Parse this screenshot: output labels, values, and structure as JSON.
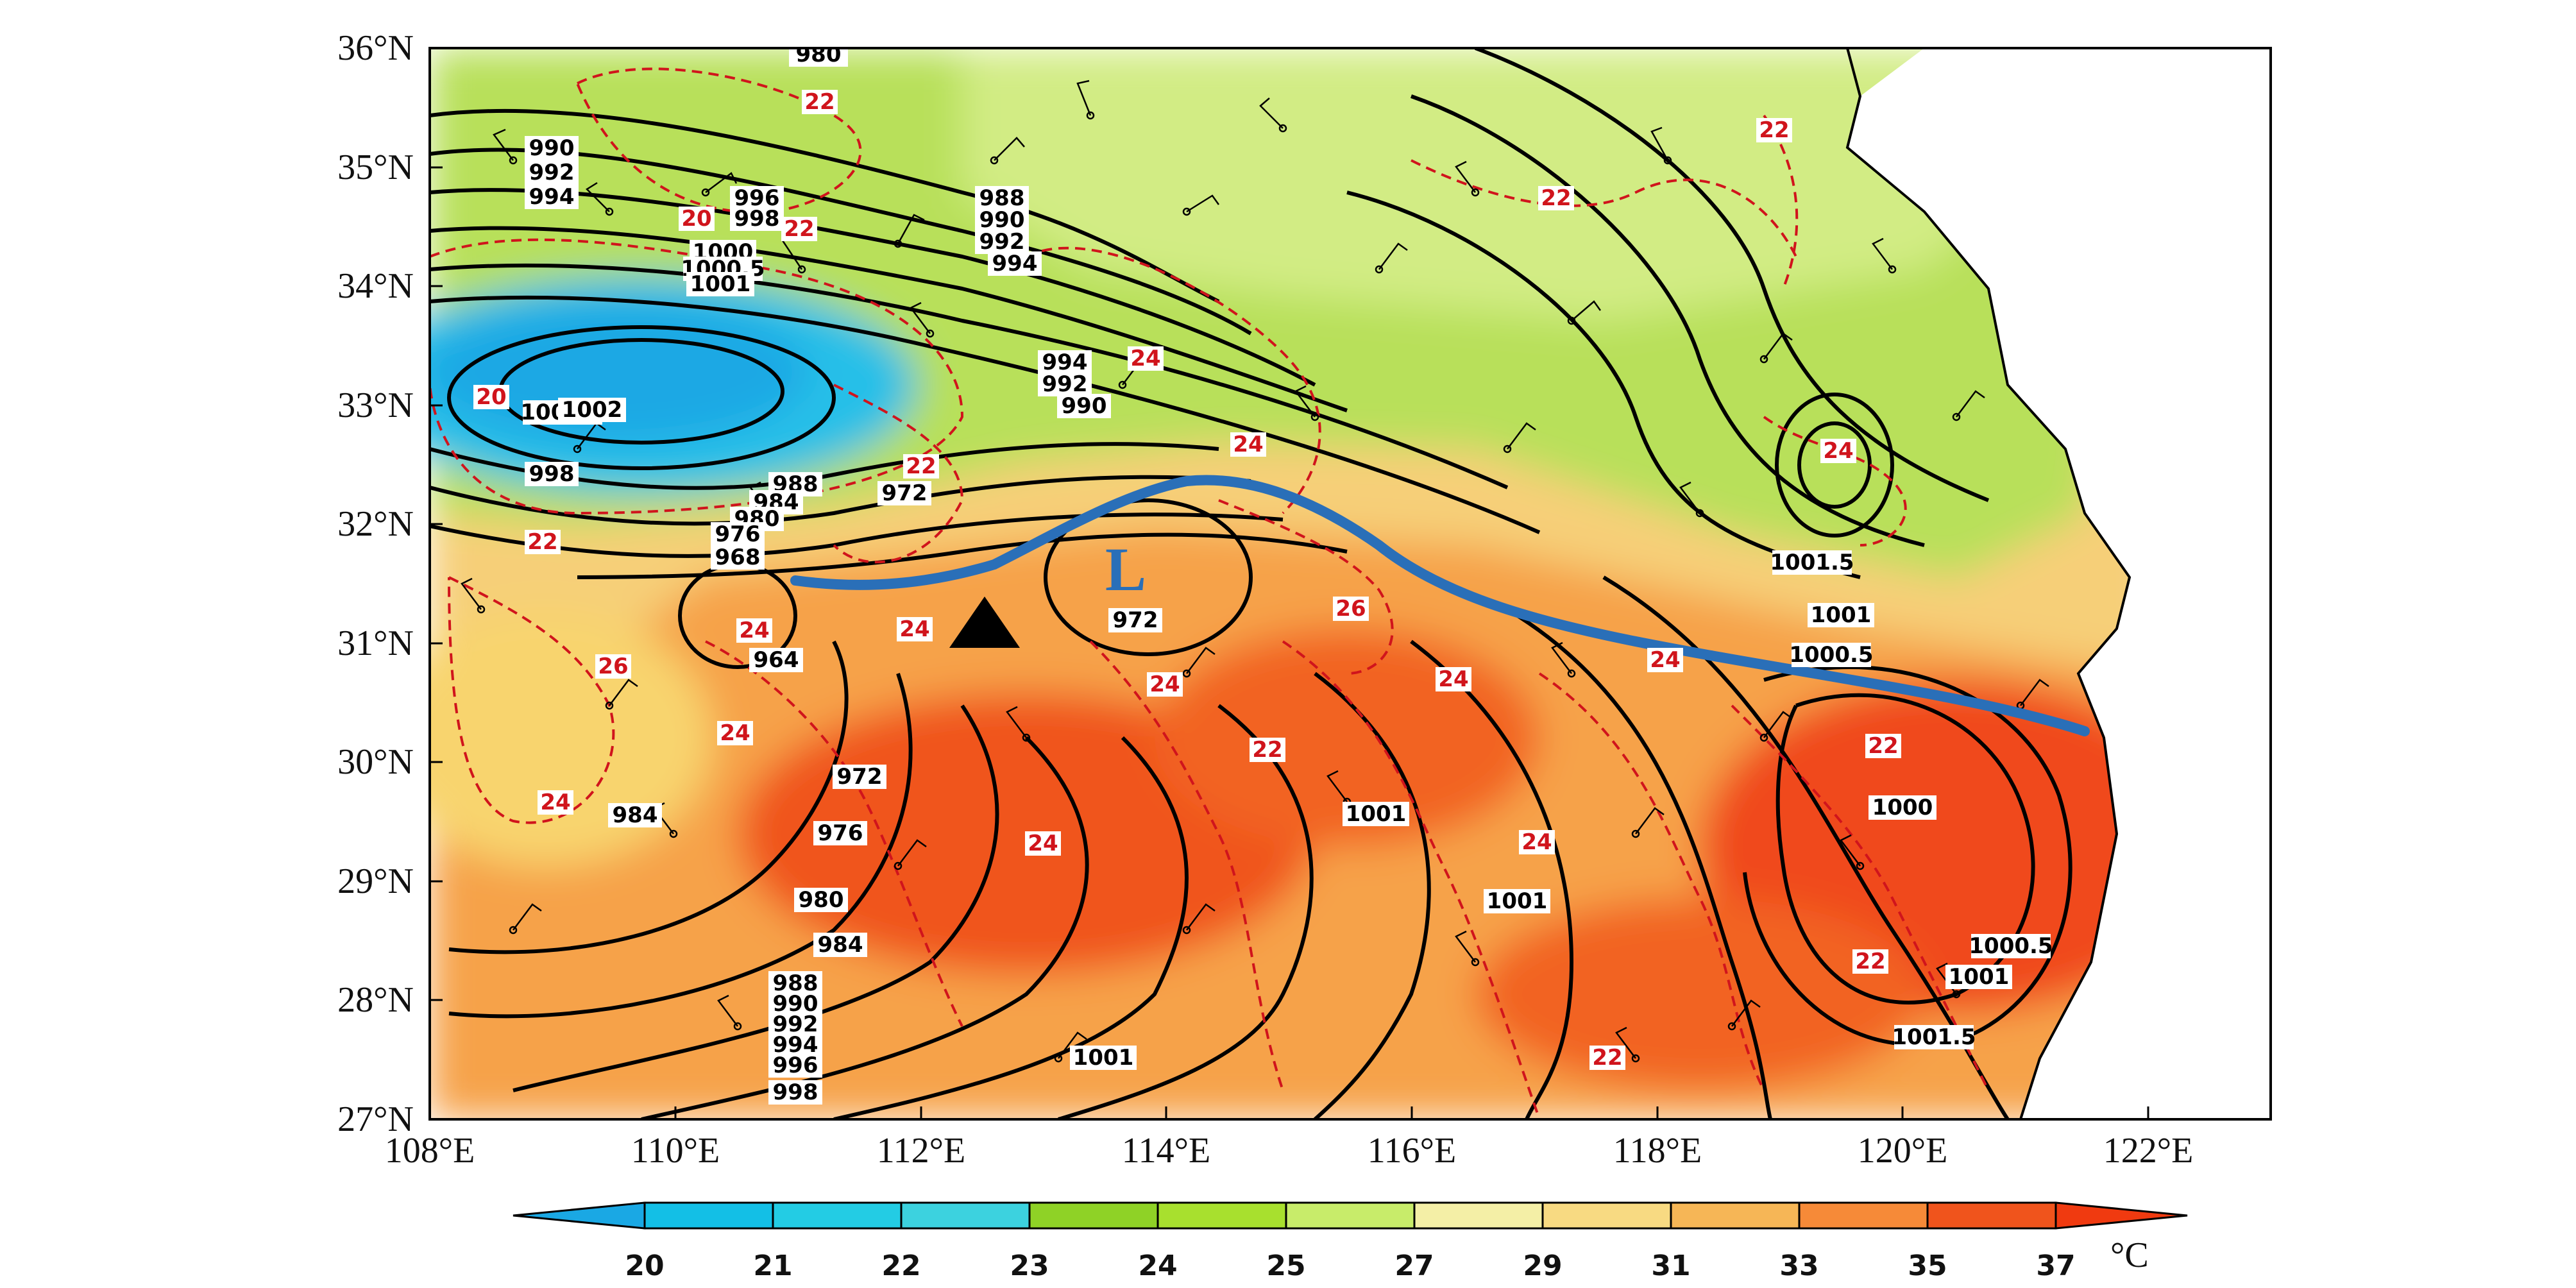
{
  "map": {
    "lon_ticks": [
      "108°E",
      "110°E",
      "112°E",
      "114°E",
      "116°E",
      "118°E",
      "120°E",
      "122°E"
    ],
    "lat_ticks": [
      "27°N",
      "28°N",
      "29°N",
      "30°N",
      "31°N",
      "32°N",
      "33°N",
      "34°N",
      "35°N",
      "36°N"
    ],
    "extent": {
      "lon": [
        108,
        123
      ],
      "lat": [
        27,
        36
      ]
    },
    "low_center_label": "L",
    "station_marker": "black-triangle",
    "colors": {
      "cold_region": "#22b8e8",
      "green_region": "#a6dc3c",
      "warm_region": "#f7a24a",
      "hot_region": "#f0541c",
      "isobar": "#000000",
      "isotherm_dashed": "#d0141c",
      "front_line": "#2a6fb8"
    }
  },
  "isobar_labels": [
    "980",
    "990",
    "992",
    "994",
    "996",
    "998",
    "1000",
    "1000.5",
    "1001",
    "1001.5",
    "1002",
    "988",
    "990",
    "992",
    "994",
    "994",
    "992",
    "990",
    "988",
    "984",
    "980",
    "976",
    "972",
    "968",
    "964",
    "972",
    "976",
    "980",
    "984",
    "988",
    "990",
    "992",
    "994",
    "996",
    "998",
    "984",
    "1001",
    "1001.5",
    "1001",
    "1000.5",
    "1000",
    "1000.5",
    "1001",
    "1001.5",
    "1001",
    "972",
    "1001",
    "998"
  ],
  "isotherm_labels": [
    "22",
    "20",
    "22",
    "20",
    "22",
    "24",
    "24",
    "22",
    "24",
    "24",
    "24",
    "26",
    "26",
    "24",
    "24",
    "22",
    "24",
    "24",
    "24",
    "22",
    "22",
    "24",
    "22",
    "22",
    "22",
    "24"
  ],
  "colorbar": {
    "ticks": [
      "20",
      "21",
      "22",
      "23",
      "24",
      "25",
      "27",
      "29",
      "31",
      "33",
      "35",
      "37"
    ],
    "colors": [
      "#1aa8e4",
      "#13bfe6",
      "#23cce4",
      "#3cd2df",
      "#8fd226",
      "#a8e02e",
      "#c8ec6a",
      "#f4efa6",
      "#f8da82",
      "#f6b656",
      "#f68a38",
      "#f0541c",
      "#f03a10"
    ],
    "unit": "°C"
  }
}
